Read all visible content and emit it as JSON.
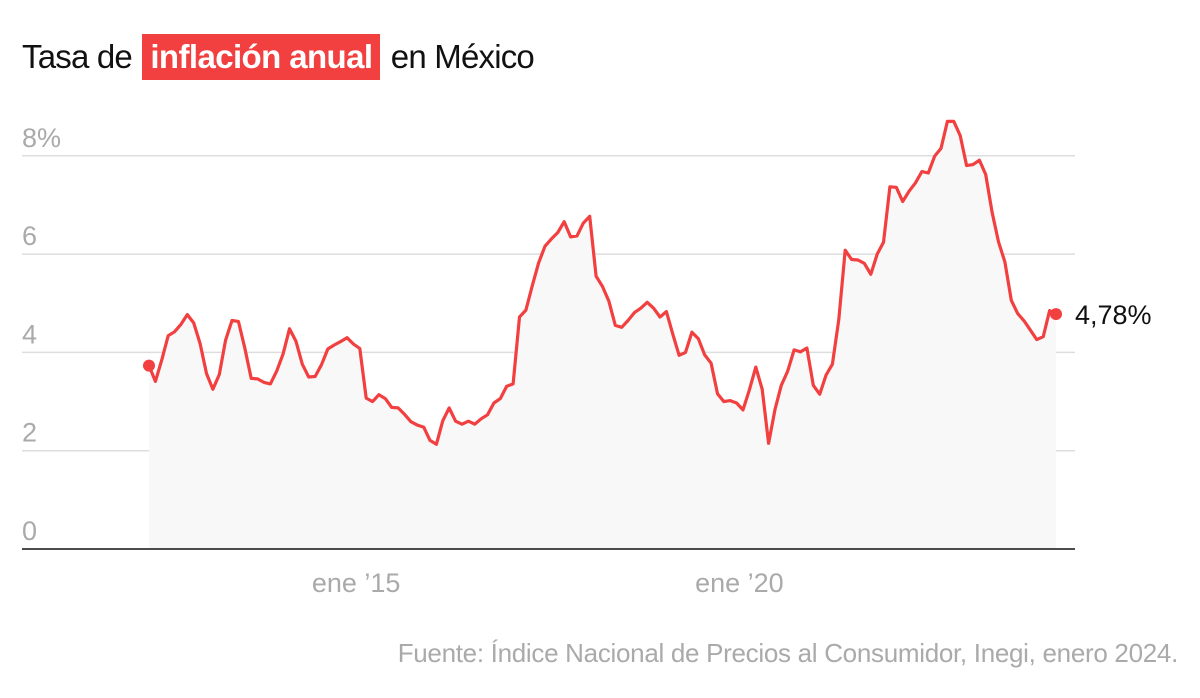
{
  "chart_data": {
    "type": "area",
    "title_parts": [
      "Tasa de",
      "inflación anual",
      "en México"
    ],
    "xlabel": "",
    "ylabel": "",
    "x_start": "2012-03",
    "x_end": "2024-01",
    "x_ticks": [
      {
        "date": "2015-01",
        "label": "ene ’15"
      },
      {
        "date": "2020-01",
        "label": "ene ’20"
      }
    ],
    "y_ticks": [
      {
        "value": 0,
        "label": "0"
      },
      {
        "value": 2,
        "label": "2"
      },
      {
        "value": 4,
        "label": "4"
      },
      {
        "value": 6,
        "label": "6"
      },
      {
        "value": 8,
        "label": "8%"
      }
    ],
    "ylim": [
      0,
      8.8
    ],
    "grid": true,
    "last_value_label": "4,78%",
    "values": [
      3.73,
      3.41,
      3.85,
      4.34,
      4.42,
      4.57,
      4.77,
      4.6,
      4.18,
      3.57,
      3.25,
      3.55,
      4.25,
      4.65,
      4.63,
      4.09,
      3.47,
      3.46,
      3.39,
      3.36,
      3.62,
      3.97,
      4.48,
      4.23,
      3.76,
      3.5,
      3.51,
      3.75,
      4.07,
      4.15,
      4.22,
      4.3,
      4.17,
      4.08,
      3.07,
      3.0,
      3.14,
      3.06,
      2.88,
      2.87,
      2.74,
      2.59,
      2.52,
      2.48,
      2.21,
      2.13,
      2.61,
      2.87,
      2.6,
      2.54,
      2.6,
      2.54,
      2.65,
      2.73,
      2.97,
      3.06,
      3.31,
      3.36,
      4.72,
      4.86,
      5.35,
      5.82,
      6.16,
      6.31,
      6.44,
      6.66,
      6.35,
      6.37,
      6.63,
      6.77,
      5.55,
      5.34,
      5.04,
      4.55,
      4.51,
      4.65,
      4.81,
      4.9,
      5.02,
      4.9,
      4.72,
      4.83,
      4.37,
      3.94,
      4.0,
      4.41,
      4.28,
      3.95,
      3.78,
      3.16,
      3.0,
      3.02,
      2.97,
      2.83,
      3.24,
      3.7,
      3.25,
      2.15,
      2.84,
      3.33,
      3.62,
      4.05,
      4.01,
      4.09,
      3.33,
      3.15,
      3.54,
      3.76,
      4.67,
      6.08,
      5.89,
      5.88,
      5.81,
      5.59,
      6.0,
      6.24,
      7.37,
      7.36,
      7.07,
      7.28,
      7.45,
      7.68,
      7.65,
      7.99,
      8.15,
      8.7,
      8.7,
      8.41,
      7.8,
      7.82,
      7.91,
      7.62,
      6.85,
      6.25,
      5.84,
      5.06,
      4.79,
      4.64,
      4.45,
      4.26,
      4.32,
      4.85,
      4.78
    ],
    "colors": {
      "line": "#f23f3f",
      "area": "#f8f8f8",
      "grid": "#dddddd",
      "axis": "#111111",
      "tick_text": "#aaaaaa"
    }
  },
  "source": "Fuente: Índice Nacional de Precios al Consumidor, Inegi, enero 2024."
}
